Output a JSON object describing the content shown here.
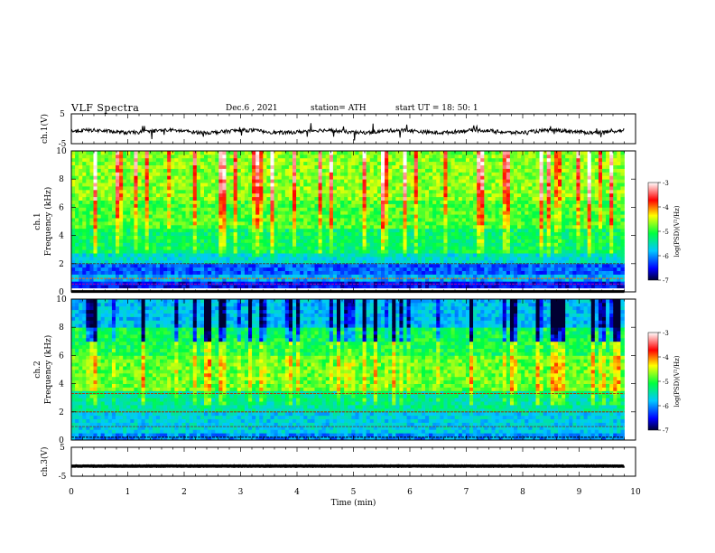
{
  "header": {
    "title": "VLF  Spectra",
    "date": "Dec.6  , 2021",
    "station": "station= ATH",
    "start_ut": "start  UT  =    18: 50: 1"
  },
  "chart_data": [
    {
      "type": "line",
      "name": "channel-1-waveform",
      "ylabel": "ch.1(V)",
      "ylim": [
        -5,
        5
      ],
      "yticks": [
        "5",
        "-5"
      ],
      "baseline": -0.9,
      "xlim": [
        0,
        10
      ],
      "data_end_min": 9.8
    },
    {
      "type": "heatmap",
      "name": "channel-1-spectrogram",
      "ylabel_line1": "ch.1",
      "ylabel_line2": "Frequency (kHz)",
      "ylim": [
        0,
        10
      ],
      "yticks": [
        "0",
        "2",
        "4",
        "6",
        "8",
        "10"
      ],
      "colorbar": {
        "label": "log(PSD)(V²/Hz)",
        "range": [
          -7,
          -3
        ],
        "ticks": [
          "-3",
          "-4",
          "-5",
          "-6",
          "-7"
        ]
      },
      "bands_khz": [
        {
          "from": 0,
          "to": 0.3,
          "level": -7
        },
        {
          "from": 0.3,
          "to": 0.8,
          "level": -6.5
        },
        {
          "from": 0.8,
          "to": 1.2,
          "level": -5.9
        },
        {
          "from": 1.2,
          "to": 2.0,
          "level": -6.2
        },
        {
          "from": 2.0,
          "to": 2.7,
          "level": -5.6
        },
        {
          "from": 2.7,
          "to": 4.5,
          "level": -5.2
        },
        {
          "from": 4.5,
          "to": 6.5,
          "level": -4.9
        },
        {
          "from": 6.5,
          "to": 10,
          "level": -4.7
        }
      ]
    },
    {
      "type": "heatmap",
      "name": "channel-2-spectrogram",
      "ylabel_line1": "ch.2",
      "ylabel_line2": "Frequency (kHz)",
      "ylim": [
        0,
        10
      ],
      "yticks": [
        "0",
        "2",
        "4",
        "6",
        "8",
        "10"
      ],
      "colorbar": {
        "label": "log(PSD)(V²/Hz)",
        "range": [
          -7,
          -3
        ],
        "ticks": [
          "-3",
          "-4",
          "-5",
          "-6",
          "-7"
        ]
      },
      "bands_khz": [
        {
          "from": 0,
          "to": 0.6,
          "level": -6.0
        },
        {
          "from": 0.6,
          "to": 2.0,
          "level": -5.7
        },
        {
          "from": 2.0,
          "to": 3.5,
          "level": -5.4
        },
        {
          "from": 3.5,
          "to": 6.0,
          "level": -4.8
        },
        {
          "from": 6.0,
          "to": 8.0,
          "level": -5.1
        },
        {
          "from": 8.0,
          "to": 10,
          "level": -5.8
        }
      ]
    },
    {
      "type": "line",
      "name": "channel-3-waveform",
      "ylabel": "ch.3(V)",
      "ylim": [
        -5,
        5
      ],
      "yticks": [
        "5",
        "-5"
      ],
      "baseline": -1.5,
      "xlim": [
        0,
        10
      ],
      "data_end_min": 9.8
    }
  ],
  "x_axis": {
    "label": "Time  (min)",
    "ticks": [
      "0",
      "1",
      "2",
      "3",
      "4",
      "5",
      "6",
      "7",
      "8",
      "9",
      "10"
    ]
  },
  "colors": {
    "colormap": [
      "#000055",
      "#0000ff",
      "#00ffff",
      "#00ff00",
      "#ffff00",
      "#ff0000",
      "#ffffff"
    ]
  }
}
